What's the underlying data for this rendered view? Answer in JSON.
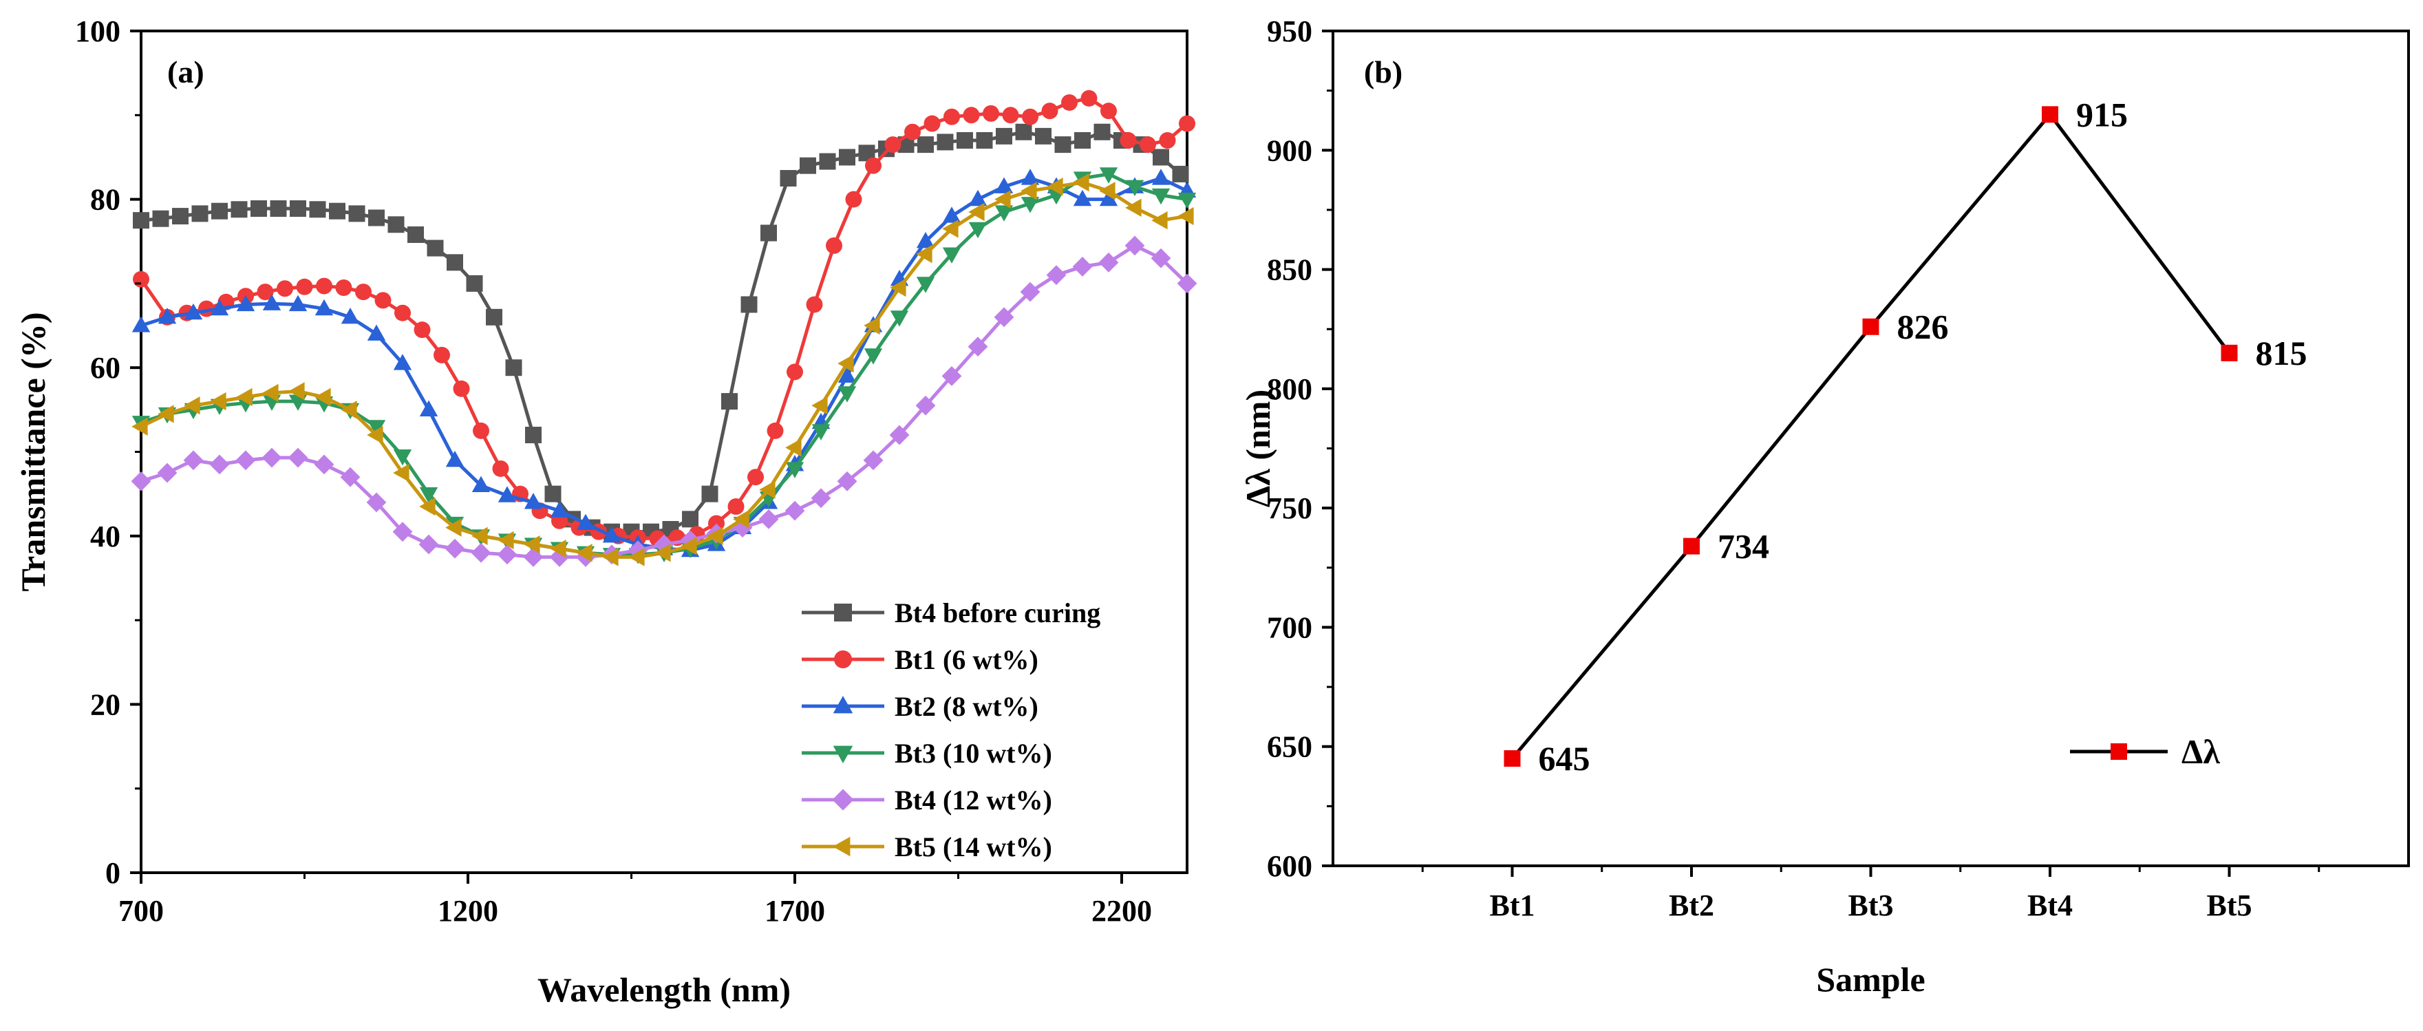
{
  "chart_data": [
    {
      "type": "line",
      "panel_label": "(a)",
      "xlabel": "Wavelength (nm)",
      "ylabel": "Transmittance (%)",
      "xlim": [
        700,
        2300
      ],
      "ylim": [
        0,
        100
      ],
      "xticks": [
        700,
        1200,
        1700,
        2200
      ],
      "yticks": [
        0,
        20,
        40,
        60,
        80,
        100
      ],
      "legend_position": "bottom-right",
      "series": [
        {
          "name": "Bt4 before curing",
          "color": "#555555",
          "marker": "square",
          "x": [
            700,
            730,
            760,
            790,
            820,
            850,
            880,
            910,
            940,
            970,
            1000,
            1030,
            1060,
            1090,
            1120,
            1150,
            1180,
            1210,
            1240,
            1270,
            1300,
            1330,
            1360,
            1390,
            1420,
            1450,
            1480,
            1510,
            1540,
            1570,
            1600,
            1630,
            1660,
            1690,
            1720,
            1750,
            1780,
            1810,
            1840,
            1870,
            1900,
            1930,
            1960,
            1990,
            2020,
            2050,
            2080,
            2110,
            2140,
            2170,
            2200,
            2230,
            2260,
            2290
          ],
          "y": [
            77.5,
            77.7,
            78.0,
            78.3,
            78.6,
            78.8,
            78.9,
            78.9,
            78.9,
            78.8,
            78.6,
            78.3,
            77.8,
            77.0,
            75.8,
            74.2,
            72.5,
            70.0,
            66.0,
            60.0,
            52.0,
            45.0,
            42.0,
            41.0,
            40.5,
            40.5,
            40.5,
            40.8,
            42.0,
            45.0,
            56.0,
            67.5,
            76.0,
            82.5,
            84.0,
            84.5,
            85.0,
            85.5,
            86.0,
            86.5,
            86.5,
            86.8,
            87.0,
            87.0,
            87.5,
            88.0,
            87.5,
            86.5,
            87.0,
            88.0,
            87.0,
            86.5,
            85.0,
            83.0
          ]
        },
        {
          "name": "Bt1 (6 wt%)",
          "color": "#ee3a3a",
          "marker": "circle",
          "x": [
            700,
            740,
            770,
            800,
            830,
            860,
            890,
            920,
            950,
            980,
            1010,
            1040,
            1070,
            1100,
            1130,
            1160,
            1190,
            1220,
            1250,
            1280,
            1310,
            1340,
            1370,
            1400,
            1430,
            1460,
            1490,
            1520,
            1550,
            1580,
            1610,
            1640,
            1670,
            1700,
            1730,
            1760,
            1790,
            1820,
            1850,
            1880,
            1910,
            1940,
            1970,
            2000,
            2030,
            2060,
            2090,
            2120,
            2150,
            2180,
            2210,
            2240,
            2270,
            2300
          ],
          "y": [
            70.5,
            66.0,
            66.5,
            67.0,
            67.8,
            68.5,
            69.0,
            69.4,
            69.6,
            69.7,
            69.5,
            69.0,
            68.0,
            66.5,
            64.5,
            61.5,
            57.5,
            52.5,
            48.0,
            45.0,
            43.0,
            41.8,
            41.0,
            40.5,
            40.0,
            39.8,
            39.7,
            39.8,
            40.2,
            41.5,
            43.5,
            47.0,
            52.5,
            59.5,
            67.5,
            74.5,
            80.0,
            84.0,
            86.5,
            88.0,
            89.0,
            89.8,
            90.0,
            90.2,
            90.0,
            89.8,
            90.5,
            91.5,
            92.0,
            90.5,
            87.0,
            86.5,
            87.0,
            89.0
          ]
        },
        {
          "name": "Bt2 (8 wt%)",
          "color": "#2a62d8",
          "marker": "triangle-up",
          "x": [
            700,
            740,
            780,
            820,
            860,
            900,
            940,
            980,
            1020,
            1060,
            1100,
            1140,
            1180,
            1220,
            1260,
            1300,
            1340,
            1380,
            1420,
            1460,
            1500,
            1540,
            1580,
            1620,
            1660,
            1700,
            1740,
            1780,
            1820,
            1860,
            1900,
            1940,
            1980,
            2020,
            2060,
            2100,
            2140,
            2180,
            2220,
            2260,
            2300
          ],
          "y": [
            65.0,
            66.0,
            66.5,
            67.0,
            67.5,
            67.6,
            67.5,
            67.0,
            66.0,
            64.0,
            60.5,
            55.0,
            49.0,
            46.0,
            44.8,
            44.0,
            43.0,
            41.5,
            40.0,
            39.0,
            38.5,
            38.3,
            39.0,
            41.0,
            44.0,
            48.5,
            53.5,
            59.0,
            65.0,
            70.5,
            75.0,
            78.0,
            80.0,
            81.5,
            82.5,
            81.5,
            80.0,
            80.0,
            81.5,
            82.5,
            81.0
          ]
        },
        {
          "name": "Bt3 (10 wt%)",
          "color": "#2e9a5e",
          "marker": "triangle-down",
          "x": [
            700,
            740,
            780,
            820,
            860,
            900,
            940,
            980,
            1020,
            1060,
            1100,
            1140,
            1180,
            1220,
            1260,
            1300,
            1340,
            1380,
            1420,
            1460,
            1500,
            1540,
            1580,
            1620,
            1660,
            1700,
            1740,
            1780,
            1820,
            1860,
            1900,
            1940,
            1980,
            2020,
            2060,
            2100,
            2140,
            2180,
            2220,
            2260,
            2300
          ],
          "y": [
            53.5,
            54.5,
            55.0,
            55.5,
            55.8,
            56.0,
            56.0,
            55.8,
            55.0,
            53.0,
            49.5,
            45.0,
            41.5,
            40.0,
            39.5,
            39.0,
            38.5,
            38.0,
            37.8,
            37.8,
            38.0,
            38.5,
            39.5,
            41.5,
            44.5,
            48.0,
            52.5,
            57.0,
            61.5,
            66.0,
            70.0,
            73.5,
            76.5,
            78.5,
            79.5,
            80.5,
            82.5,
            83.0,
            81.5,
            80.5,
            80.0
          ]
        },
        {
          "name": "Bt4 (12 wt%)",
          "color": "#bf7fe8",
          "marker": "diamond",
          "x": [
            700,
            740,
            780,
            820,
            860,
            900,
            940,
            980,
            1020,
            1060,
            1100,
            1140,
            1180,
            1220,
            1260,
            1300,
            1340,
            1380,
            1420,
            1460,
            1500,
            1540,
            1580,
            1620,
            1660,
            1700,
            1740,
            1780,
            1820,
            1860,
            1900,
            1940,
            1980,
            2020,
            2060,
            2100,
            2140,
            2180,
            2220,
            2260,
            2300
          ],
          "y": [
            46.5,
            47.5,
            49.0,
            48.5,
            49.0,
            49.3,
            49.3,
            48.5,
            47.0,
            44.0,
            40.5,
            39.0,
            38.5,
            38.0,
            37.8,
            37.5,
            37.5,
            37.5,
            37.8,
            38.3,
            39.0,
            39.5,
            40.3,
            41.0,
            42.0,
            43.0,
            44.5,
            46.5,
            49.0,
            52.0,
            55.5,
            59.0,
            62.5,
            66.0,
            69.0,
            71.0,
            72.0,
            72.5,
            74.5,
            73.0,
            70.0
          ]
        },
        {
          "name": "Bt5 (14 wt%)",
          "color": "#c8960e",
          "marker": "triangle-left",
          "x": [
            700,
            740,
            780,
            820,
            860,
            900,
            940,
            980,
            1020,
            1060,
            1100,
            1140,
            1180,
            1220,
            1260,
            1300,
            1340,
            1380,
            1420,
            1460,
            1500,
            1540,
            1580,
            1620,
            1660,
            1700,
            1740,
            1780,
            1820,
            1860,
            1900,
            1940,
            1980,
            2020,
            2060,
            2100,
            2140,
            2180,
            2220,
            2260,
            2300
          ],
          "y": [
            53.0,
            54.5,
            55.5,
            56.0,
            56.5,
            57.0,
            57.2,
            56.5,
            55.0,
            52.0,
            47.5,
            43.5,
            41.0,
            40.0,
            39.5,
            39.0,
            38.5,
            38.0,
            37.5,
            37.5,
            38.0,
            38.8,
            40.0,
            42.0,
            45.5,
            50.5,
            55.5,
            60.5,
            65.0,
            69.5,
            73.5,
            76.5,
            78.5,
            80.0,
            81.0,
            81.5,
            82.0,
            81.0,
            79.0,
            77.5,
            78.0
          ]
        }
      ]
    },
    {
      "type": "line",
      "panel_label": "(b)",
      "xlabel": "Sample",
      "ylabel": "Δλ (nm)",
      "ylim": [
        600,
        950
      ],
      "yticks": [
        600,
        650,
        700,
        750,
        800,
        850,
        900,
        950
      ],
      "categories": [
        "Bt1",
        "Bt2",
        "Bt3",
        "Bt4",
        "Bt5"
      ],
      "legend_position": "bottom-right",
      "series": [
        {
          "name": "Δλ",
          "color": "#ee0000",
          "line_color": "#000000",
          "marker": "square",
          "values": [
            645,
            734,
            826,
            915,
            815
          ],
          "data_labels": [
            "645",
            "734",
            "826",
            "915",
            "815"
          ]
        }
      ]
    }
  ]
}
